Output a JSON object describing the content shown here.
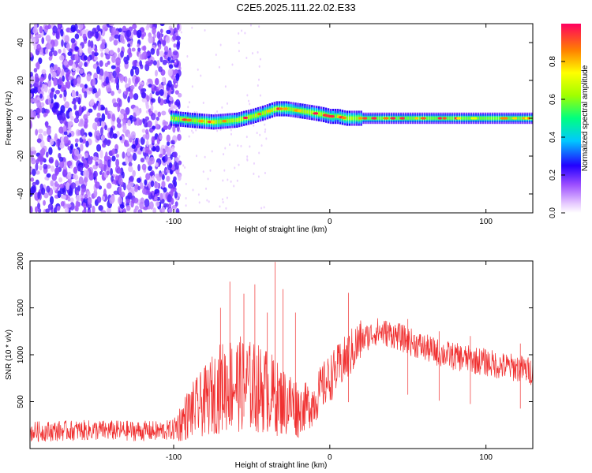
{
  "title": "C2E5.2025.111.22.02.E33",
  "chart_data": [
    {
      "type": "heatmap",
      "xlabel": "Height of straight line (km)",
      "ylabel": "Frequency (Hz)",
      "xlim": [
        -192,
        130
      ],
      "ylim": [
        -50,
        50
      ],
      "xticks": [
        -100,
        0,
        100
      ],
      "yticks": [
        -40,
        -20,
        0,
        20,
        40
      ],
      "colorbar": {
        "label": "Normalized spectral amplitude",
        "range": [
          0,
          1
        ],
        "ticks": [
          0.0,
          0.2,
          0.4,
          0.6,
          0.8
        ]
      },
      "ridge": {
        "x": [
          -102,
          -90,
          -75,
          -60,
          -50,
          -42,
          -35,
          -28,
          -20,
          -12,
          -5,
          0,
          5,
          10,
          20,
          40,
          60,
          80,
          100,
          130
        ],
        "y": [
          0,
          -1,
          -2,
          -1,
          1,
          3,
          5,
          5,
          4,
          3,
          2,
          1,
          1,
          0,
          0,
          0,
          0,
          0,
          0,
          0
        ]
      },
      "noise_region_x": [
        -192,
        -100
      ]
    },
    {
      "type": "line",
      "xlabel": "Height of straight line (km)",
      "ylabel": "SNR (10 * v/v)",
      "xlim": [
        -192,
        130
      ],
      "ylim": [
        0,
        2000
      ],
      "xticks": [
        -100,
        0,
        100
      ],
      "yticks": [
        500,
        1000,
        1500,
        2000
      ],
      "series": [
        {
          "color": "#f03030",
          "x": [
            -192,
            -170,
            -150,
            -130,
            -110,
            -100,
            -90,
            -80,
            -70,
            -62,
            -55,
            -48,
            -40,
            -35,
            -30,
            -25,
            -20,
            -15,
            -10,
            -5,
            0,
            5,
            10,
            15,
            20,
            25,
            30,
            40,
            50,
            60,
            70,
            80,
            90,
            100,
            110,
            120,
            130
          ],
          "y": [
            180,
            190,
            195,
            190,
            185,
            200,
            380,
            500,
            650,
            700,
            680,
            650,
            620,
            550,
            500,
            480,
            420,
            450,
            500,
            650,
            750,
            850,
            950,
            1050,
            1150,
            1200,
            1250,
            1220,
            1150,
            1080,
            1020,
            980,
            950,
            920,
            880,
            860,
            820
          ]
        }
      ],
      "spikes": {
        "x": [
          -70,
          -64,
          -55,
          -48,
          -40,
          -35,
          -30,
          -22,
          12,
          50,
          70,
          90,
          122
        ],
        "y": [
          1500,
          1780,
          1650,
          1750,
          1450,
          1990,
          1700,
          1450,
          1660,
          1380,
          1250,
          1200,
          1120
        ]
      }
    }
  ]
}
